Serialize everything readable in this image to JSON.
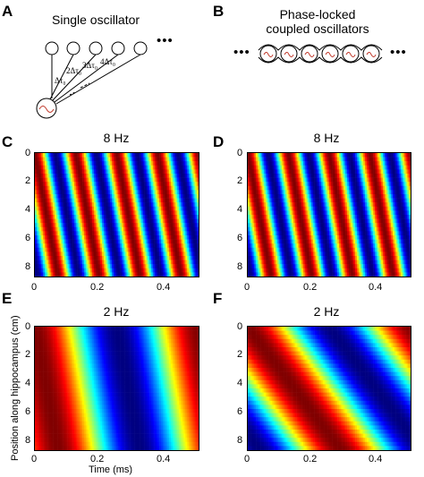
{
  "panels": {
    "A": {
      "letter": "A",
      "title": "Single oscillator",
      "delays": [
        "Δτ₀",
        "2Δτ₀",
        "3Δτ₀",
        "4Δτ₀"
      ],
      "ellipsis": "•••"
    },
    "B": {
      "letter": "B",
      "title_line1": "Phase-locked",
      "title_line2": "coupled oscillators",
      "ellipsis_left": "•••",
      "ellipsis_right": "•••"
    },
    "C": {
      "letter": "C",
      "title": "8 Hz"
    },
    "D": {
      "letter": "D",
      "title": "8 Hz"
    },
    "E": {
      "letter": "E",
      "title": "2 Hz"
    },
    "F": {
      "letter": "F",
      "title": "2 Hz"
    }
  },
  "axes": {
    "ylabel": "Position along hippocampus (cm)",
    "xlabel": "Time (ms)",
    "y_ticks": [
      "0",
      "2",
      "4",
      "6",
      "8"
    ],
    "x_ticks": [
      "0",
      "0.2",
      "0.4"
    ]
  },
  "chart_data": [
    {
      "panel": "C",
      "type": "heatmap",
      "title": "8 Hz",
      "frequency_hz": 8,
      "xlim": [
        0,
        0.5
      ],
      "ylim": [
        0,
        8.8
      ],
      "y_reversed": true,
      "x_ticks": [
        0,
        0.2,
        0.4
      ],
      "y_ticks": [
        0,
        2,
        4,
        6,
        8
      ],
      "xlabel": "",
      "ylabel": "",
      "phase_slope_cycles_per_cm": 0.065,
      "colormap": "jet"
    },
    {
      "panel": "D",
      "type": "heatmap",
      "title": "8 Hz",
      "frequency_hz": 8,
      "xlim": [
        0,
        0.5
      ],
      "ylim": [
        0,
        8.8
      ],
      "y_reversed": true,
      "x_ticks": [
        0,
        0.2,
        0.4
      ],
      "y_ticks": [
        0,
        2,
        4,
        6,
        8
      ],
      "xlabel": "",
      "ylabel": "",
      "phase_slope_cycles_per_cm": 0.065,
      "colormap": "jet"
    },
    {
      "panel": "E",
      "type": "heatmap",
      "title": "2 Hz",
      "frequency_hz": 2,
      "xlim": [
        0,
        0.5
      ],
      "ylim": [
        0,
        8.8
      ],
      "y_reversed": true,
      "x_ticks": [
        0,
        0.2,
        0.4
      ],
      "y_ticks": [
        0,
        2,
        4,
        6,
        8
      ],
      "xlabel": "Time (ms)",
      "ylabel": "Position along hippocampus (cm)",
      "phase_slope_cycles_per_cm": 0.016,
      "colormap": "jet"
    },
    {
      "panel": "F",
      "type": "heatmap",
      "title": "2 Hz",
      "frequency_hz": 2,
      "xlim": [
        0,
        0.5
      ],
      "ylim": [
        0,
        8.8
      ],
      "y_reversed": true,
      "x_ticks": [
        0,
        0.2,
        0.4
      ],
      "y_ticks": [
        0,
        2,
        4,
        6,
        8
      ],
      "xlabel": "",
      "ylabel": "",
      "phase_slope_cycles_per_cm": 0.065,
      "colormap": "jet"
    }
  ]
}
